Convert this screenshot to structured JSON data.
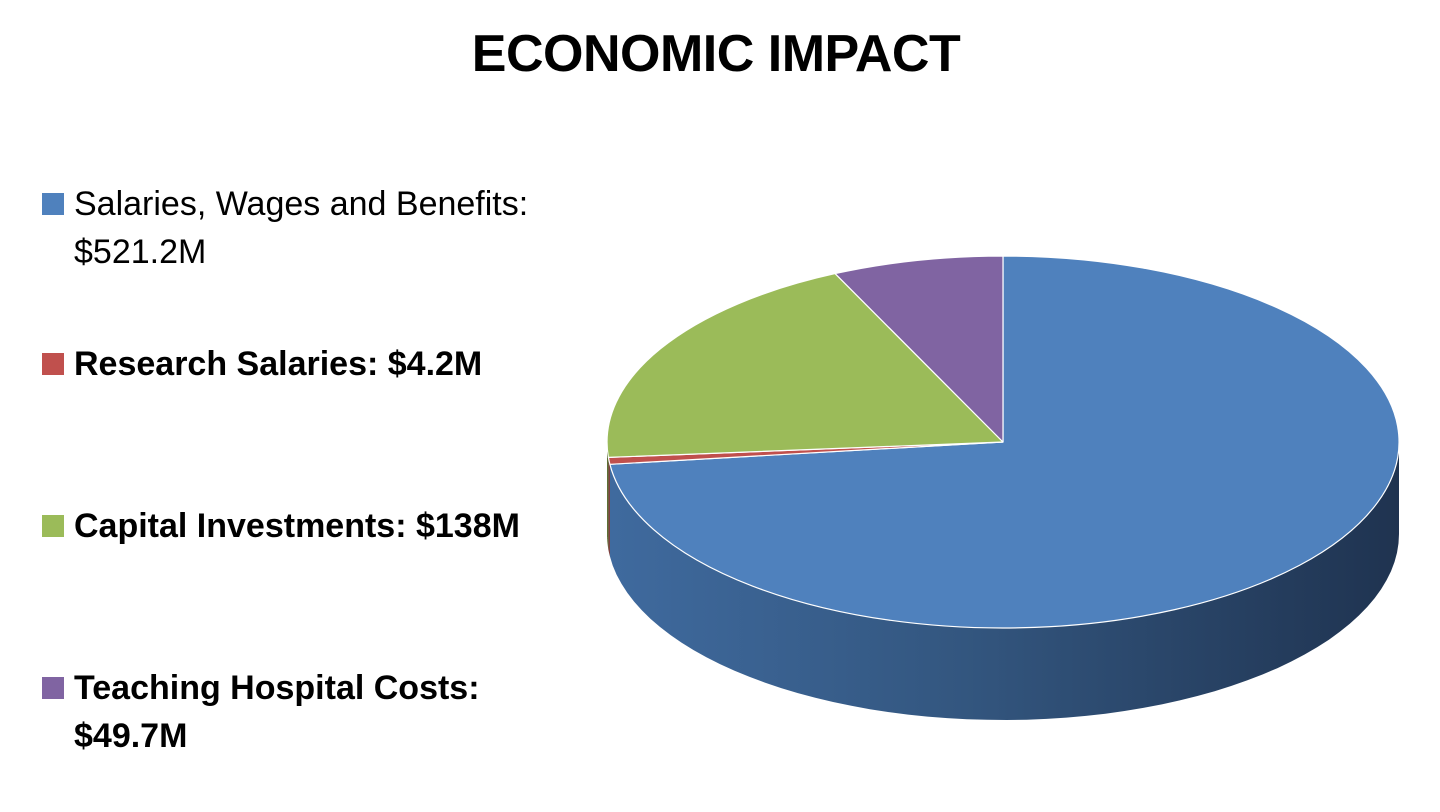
{
  "title": "ECONOMIC IMPACT",
  "legend": [
    {
      "label": "Salaries, Wages and Benefits: $521.2M",
      "bold": false
    },
    {
      "label": "Research Salaries: $4.2M",
      "bold": true
    },
    {
      "label": "Capital Investments: $138M",
      "bold": true
    },
    {
      "label": "Teaching Hospital Costs: $49.7M",
      "bold": true
    }
  ],
  "chart_data": {
    "type": "pie",
    "style": "3d",
    "title": "ECONOMIC IMPACT",
    "categories": [
      "Salaries, Wages and Benefits",
      "Research Salaries",
      "Capital Investments",
      "Teaching Hospital Costs"
    ],
    "values": [
      521.2,
      4.2,
      138,
      49.7
    ],
    "unit": "$M",
    "colors": [
      "#4F81BD",
      "#C0504D",
      "#9BBB59",
      "#8064A2"
    ],
    "legend_position": "left"
  }
}
